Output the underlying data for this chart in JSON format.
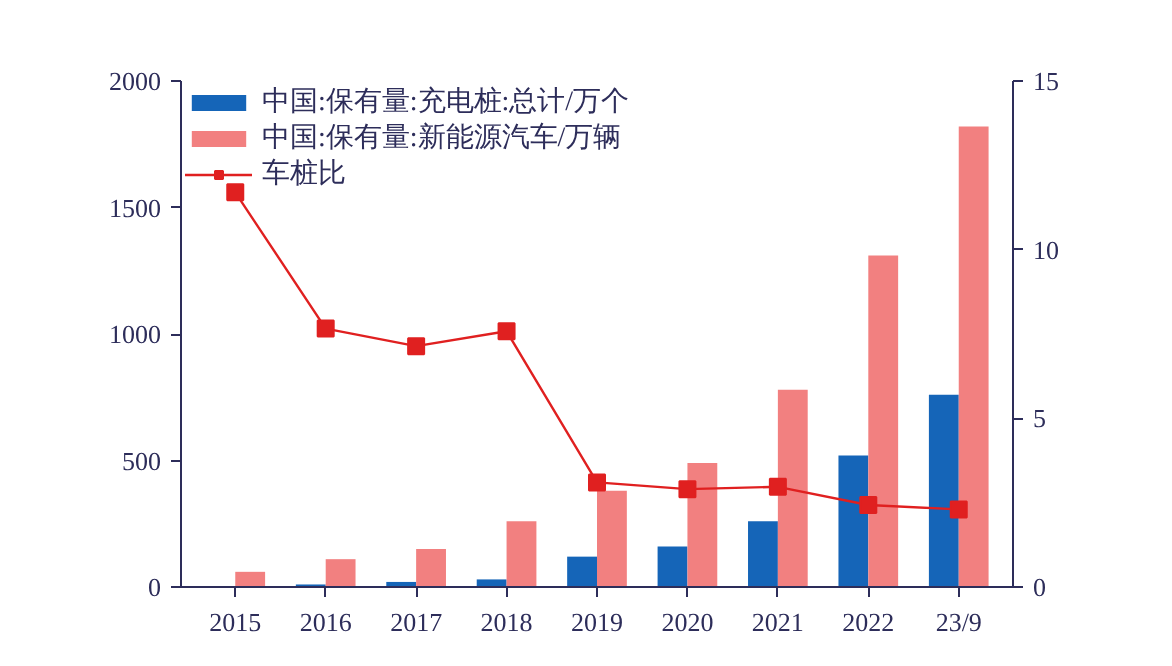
{
  "chart_data": {
    "type": "bar",
    "categories": [
      "2015",
      "2016",
      "2017",
      "2018",
      "2019",
      "2020",
      "2021",
      "2022",
      "23/9"
    ],
    "series": [
      {
        "name": "中国:保有量:充电桩:总计/万个",
        "color": "#1565b8",
        "values": [
          0,
          10,
          20,
          30,
          120,
          160,
          260,
          520,
          760
        ]
      },
      {
        "name": "中国:保有量:新能源汽车/万辆",
        "color": "#f28080",
        "values": [
          60,
          110,
          150,
          260,
          380,
          490,
          780,
          1310,
          1820
        ]
      },
      {
        "name": "车桩比",
        "type": "line",
        "axis": "y2",
        "color": "#e02020",
        "marker": "square",
        "values": [
          11.7,
          7.66,
          7.14,
          7.58,
          3.1,
          2.9,
          2.97,
          2.43,
          2.3
        ]
      }
    ],
    "ylim": [
      0,
      2000
    ],
    "yticks": [
      0,
      500,
      1000,
      1500,
      2000
    ],
    "y2lim": [
      0,
      15
    ],
    "y2ticks": [
      0,
      5,
      10,
      15
    ],
    "grid": false,
    "legend": "top left"
  }
}
